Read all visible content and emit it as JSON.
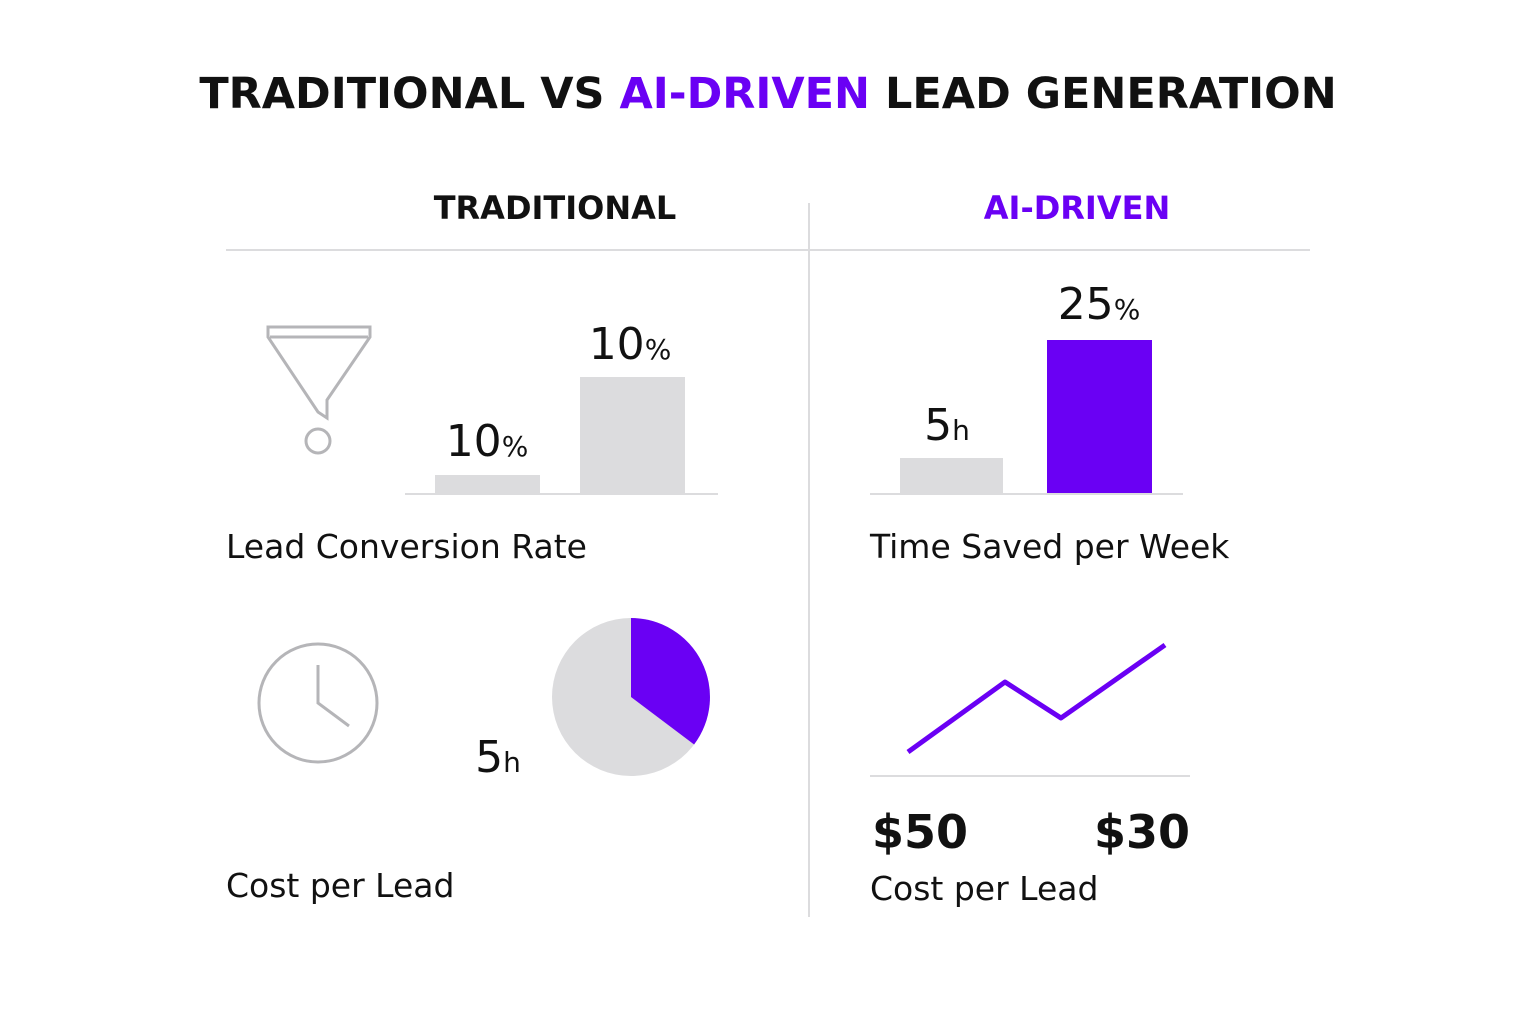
{
  "title": {
    "parts": [
      "TRADITIONAL VS ",
      "AI-DRIVEN",
      " LEAD GENERATION"
    ]
  },
  "columns": {
    "traditional": {
      "header": "TRADITIONAL",
      "conversion": {
        "labels": [
          {
            "number": "10",
            "unit": "%"
          },
          {
            "number": "10",
            "unit": "%"
          }
        ],
        "caption": "Lead Conversion Rate"
      },
      "cost": {
        "label": {
          "number": "5",
          "unit": "h"
        },
        "caption": "Cost per Lead"
      }
    },
    "ai": {
      "header": "AI-DRIVEN",
      "time": {
        "labels": [
          {
            "number": "5",
            "unit": "h"
          },
          {
            "number": "25",
            "unit": "%"
          }
        ],
        "caption": "Time Saved per Week"
      },
      "cost": {
        "labels": [
          "$50",
          "$30"
        ],
        "caption": "Cost per Lead"
      }
    }
  }
}
